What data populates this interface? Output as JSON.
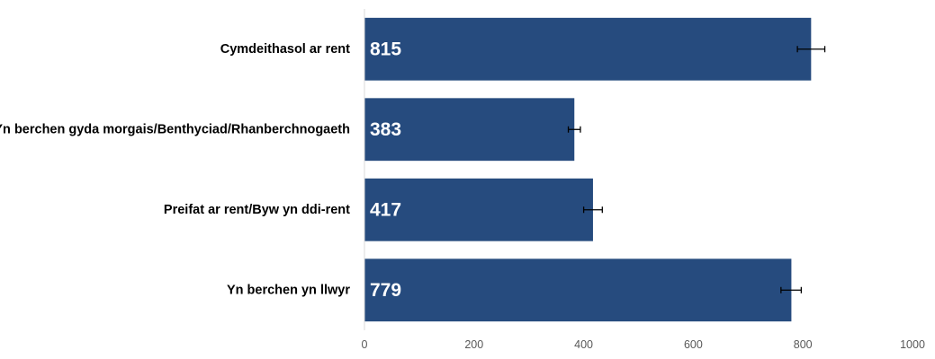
{
  "chart_data": {
    "type": "bar",
    "orientation": "horizontal",
    "categories": [
      "Cymdeithasol ar rent",
      "Yn berchen gyda morgais/Benthyciad/Rhanberchnogaeth",
      "Preifat ar rent/Byw yn ddi-rent",
      "Yn berchen yn llwyr"
    ],
    "values": [
      815,
      383,
      417,
      779
    ],
    "error_bars": [
      [
        790,
        840
      ],
      [
        372,
        394
      ],
      [
        400,
        434
      ],
      [
        760,
        797
      ]
    ],
    "xlim": [
      0,
      1000
    ],
    "xticks": [
      0,
      200,
      400,
      600,
      800,
      1000
    ],
    "bar_color": "#264b7e",
    "grid": false,
    "legend": "none",
    "title": "",
    "xlabel": "",
    "ylabel": ""
  }
}
